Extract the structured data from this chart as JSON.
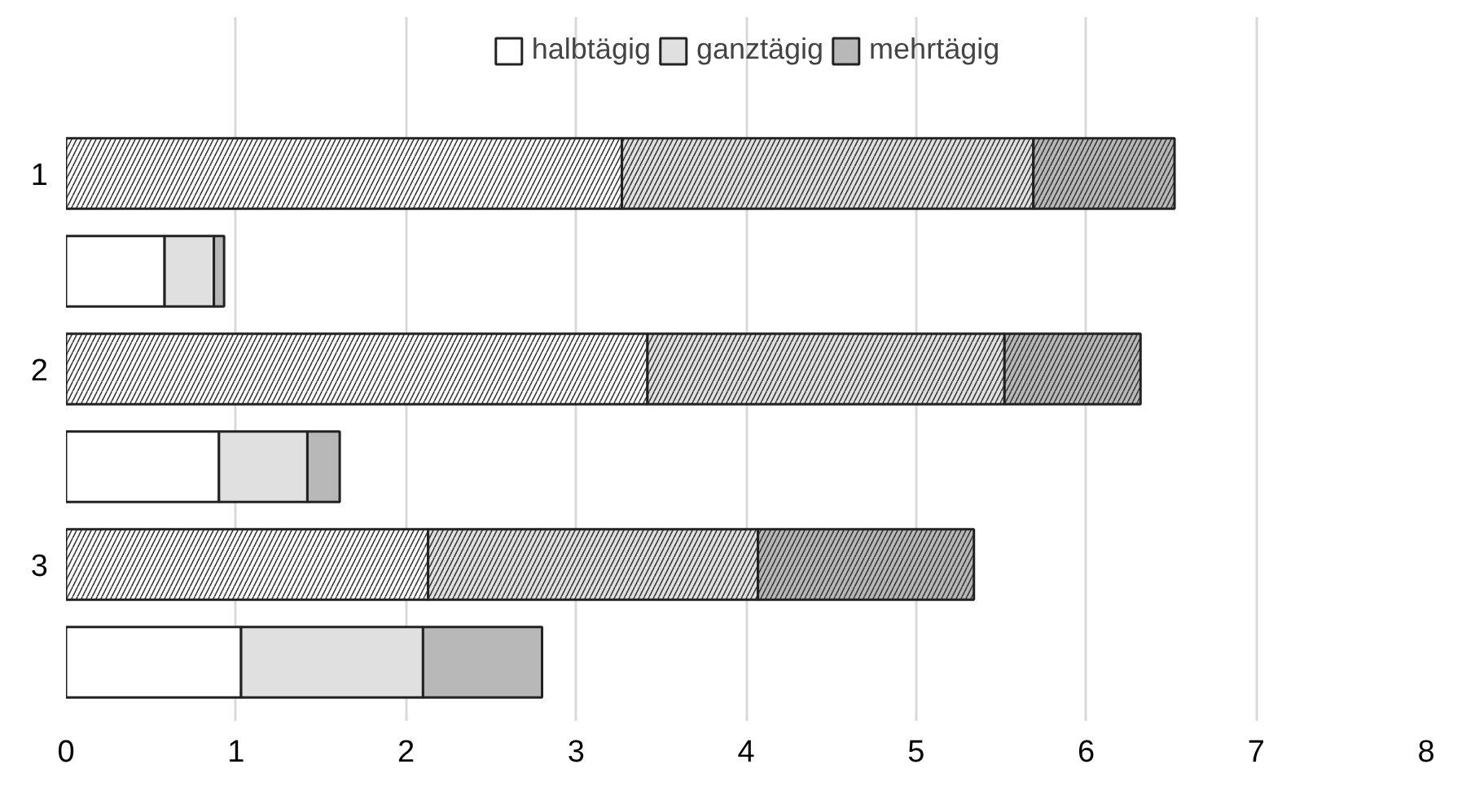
{
  "chart_data": {
    "type": "bar",
    "orientation": "horizontal",
    "stacked": true,
    "categories": [
      "1",
      null,
      "2",
      null,
      "3",
      null
    ],
    "series": [
      {
        "color": "#ffffff",
        "values": [
          3.27,
          null,
          3.42,
          null,
          2.13,
          null
        ]
      },
      {
        "color": "#e0e0e0",
        "values": [
          2.42,
          null,
          2.1,
          null,
          1.94,
          null
        ]
      },
      {
        "color": "#b8b8b8",
        "values": [
          0.83,
          null,
          0.8,
          null,
          1.27,
          null
        ]
      },
      {
        "name": "halbtägig",
        "color": "#ffffff",
        "values": [
          null,
          0.58,
          null,
          0.9,
          null,
          1.03
        ]
      },
      {
        "name": "ganztägig",
        "color": "#e0e0e0",
        "values": [
          null,
          0.29,
          null,
          0.52,
          null,
          1.07
        ]
      },
      {
        "name": "mehrtägig",
        "color": "#b8b8b8",
        "values": [
          null,
          0.06,
          null,
          0.19,
          null,
          0.7
        ]
      }
    ],
    "xlim": [
      0,
      8
    ],
    "xticks": [
      0,
      1,
      2,
      3,
      4,
      5,
      6,
      7,
      8
    ],
    "grid": "x",
    "legend": "top"
  }
}
